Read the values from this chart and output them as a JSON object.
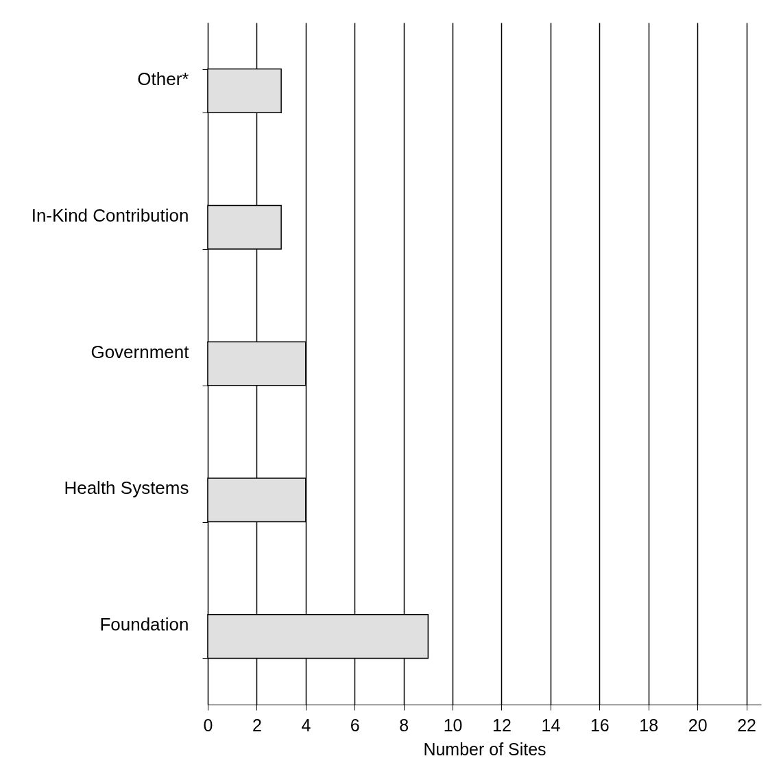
{
  "chart_data": {
    "type": "bar",
    "orientation": "horizontal",
    "categories": [
      "Other*",
      "In-Kind Contribution",
      "Government",
      "Health Systems",
      "Foundation"
    ],
    "values": [
      3,
      3,
      4,
      4,
      9
    ],
    "color": "#e0e0e0",
    "xlabel": "Number of Sites",
    "xlim": [
      0,
      22.6
    ],
    "xticks": [
      0,
      2,
      4,
      6,
      8,
      10,
      12,
      14,
      16,
      18,
      20,
      22
    ],
    "grid": "x"
  }
}
